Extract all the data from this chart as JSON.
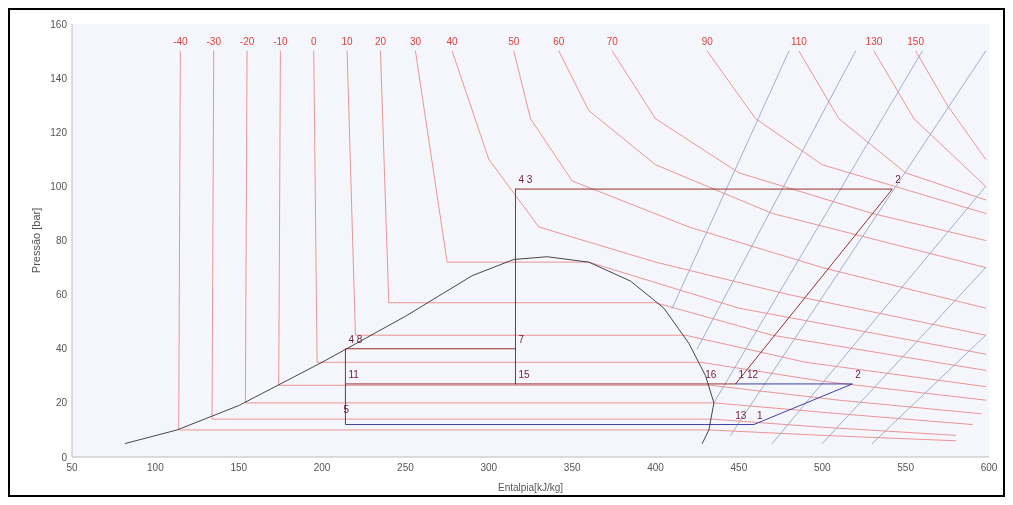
{
  "chart_data": {
    "type": "line",
    "xlabel": "Entalpia[kJ/kg]",
    "ylabel": "Pressão [bar]",
    "xlim": [
      50,
      600
    ],
    "ylim": [
      0,
      160
    ],
    "xticks": [
      50,
      100,
      150,
      200,
      250,
      300,
      350,
      400,
      450,
      500,
      550,
      600
    ],
    "yticks": [
      0,
      20,
      40,
      60,
      80,
      100,
      120,
      140,
      160
    ],
    "grid": false,
    "series": [
      {
        "name": "-40",
        "color": "#e88a8a",
        "x": [
          115,
          114,
          432,
          500,
          580
        ],
        "values": [
          150,
          10,
          10,
          8,
          6
        ]
      },
      {
        "name": "-30",
        "color": "#e88a8a",
        "x": [
          135,
          134,
          434,
          500,
          580
        ],
        "values": [
          150,
          14,
          14,
          11,
          8
        ]
      },
      {
        "name": "-20",
        "color": "#e88a8a",
        "x": [
          155,
          154,
          435,
          510,
          590
        ],
        "values": [
          150,
          20,
          20,
          16,
          12
        ]
      },
      {
        "name": "-10",
        "color": "#e88a8a",
        "x": [
          175,
          174,
          433,
          510,
          595
        ],
        "values": [
          150,
          26.5,
          26.5,
          21,
          16
        ]
      },
      {
        "name": "0",
        "color": "#e88a8a",
        "x": [
          195,
          197,
          427,
          500,
          598
        ],
        "values": [
          150,
          35,
          35,
          28,
          21
        ]
      },
      {
        "name": "10",
        "color": "#e88a8a",
        "x": [
          215,
          220,
          418,
          490,
          598
        ],
        "values": [
          150,
          45,
          45,
          35,
          26
        ]
      },
      {
        "name": "20",
        "color": "#e88a8a",
        "x": [
          235,
          240,
          400,
          470,
          598
        ],
        "values": [
          150,
          57,
          57,
          45,
          32
        ]
      },
      {
        "name": "30",
        "color": "#e88a8a",
        "x": [
          256,
          275,
          360,
          450,
          598
        ],
        "values": [
          150,
          72,
          72,
          55,
          38
        ]
      },
      {
        "name": "40",
        "color": "#e88a8a",
        "x": [
          278,
          300,
          330,
          400,
          480,
          598
        ],
        "values": [
          150,
          110,
          85,
          72,
          60,
          45
        ]
      },
      {
        "name": "50",
        "color": "#e88a8a",
        "x": [
          315,
          325,
          350,
          420,
          500,
          598
        ],
        "values": [
          150,
          125,
          102,
          85,
          70,
          55
        ]
      },
      {
        "name": "60",
        "color": "#e88a8a",
        "x": [
          342,
          360,
          400,
          470,
          598
        ],
        "values": [
          150,
          128,
          108,
          90,
          70
        ]
      },
      {
        "name": "70",
        "color": "#e88a8a",
        "x": [
          374,
          400,
          450,
          530,
          598
        ],
        "values": [
          150,
          125,
          105,
          90,
          80
        ]
      },
      {
        "name": "90",
        "color": "#e88a8a",
        "x": [
          431,
          460,
          500,
          598
        ],
        "values": [
          150,
          125,
          108,
          90
        ]
      },
      {
        "name": "110",
        "color": "#e88a8a",
        "x": [
          486,
          510,
          550,
          598
        ],
        "values": [
          150,
          125,
          105,
          95
        ]
      },
      {
        "name": "130",
        "color": "#e88a8a",
        "x": [
          531,
          555,
          598
        ],
        "values": [
          150,
          125,
          100
        ]
      },
      {
        "name": "150",
        "color": "#e88a8a",
        "x": [
          556,
          575,
          598
        ],
        "values": [
          150,
          130,
          110
        ]
      },
      {
        "color": "#9aa6c8",
        "x": [
          410,
          480
        ],
        "values": [
          55,
          150
        ]
      },
      {
        "color": "#9aa6c8",
        "x": [
          425,
          520
        ],
        "values": [
          40,
          150
        ]
      },
      {
        "color": "#9aa6c8",
        "x": [
          435,
          560
        ],
        "values": [
          20,
          150
        ]
      },
      {
        "color": "#9aa6c8",
        "x": [
          445,
          598
        ],
        "values": [
          8,
          150
        ]
      },
      {
        "color": "#9aa6c8",
        "x": [
          470,
          598
        ],
        "values": [
          5,
          100
        ]
      },
      {
        "color": "#9aa6c8",
        "x": [
          500,
          598
        ],
        "values": [
          5,
          70
        ]
      },
      {
        "color": "#9aa6c8",
        "x": [
          530,
          598
        ],
        "values": [
          5,
          45
        ]
      },
      {
        "color": "#333333",
        "x": [
          82,
          113,
          150,
          200,
          250,
          290,
          315,
          335,
          360,
          385,
          405,
          420,
          430,
          435,
          432,
          428
        ],
        "values": [
          5,
          10,
          19,
          35,
          52,
          67,
          73,
          74,
          72,
          65,
          55,
          42,
          30,
          20,
          10,
          5
        ]
      },
      {
        "color": "#8b1a1a",
        "x": [
          316,
          542,
          448,
          430,
          214,
          214,
          316
        ],
        "values": [
          99,
          99,
          27,
          27,
          27,
          40,
          40
        ]
      },
      {
        "color": "#8b1a1a",
        "x": [
          316,
          316
        ],
        "values": [
          27,
          99
        ]
      },
      {
        "color": "#2a2f9a",
        "x": [
          448,
          518,
          459,
          449,
          214,
          214
        ],
        "values": [
          27,
          27,
          12,
          12,
          12,
          27
        ]
      }
    ],
    "annotations": [
      {
        "text": "4 3",
        "x": 316,
        "y": 99
      },
      {
        "text": "2",
        "x": 542,
        "y": 99
      },
      {
        "text": "4 8",
        "x": 214,
        "y": 40
      },
      {
        "text": "7",
        "x": 316,
        "y": 40
      },
      {
        "text": "11",
        "x": 214,
        "y": 27
      },
      {
        "text": "15",
        "x": 316,
        "y": 27
      },
      {
        "text": "16",
        "x": 428,
        "y": 27
      },
      {
        "text": "1 12",
        "x": 448,
        "y": 27
      },
      {
        "text": "2",
        "x": 518,
        "y": 27
      },
      {
        "text": "13",
        "x": 446,
        "y": 12
      },
      {
        "text": "1",
        "x": 459,
        "y": 12
      },
      {
        "text": "5",
        "x": 211,
        "y": 14
      }
    ]
  }
}
